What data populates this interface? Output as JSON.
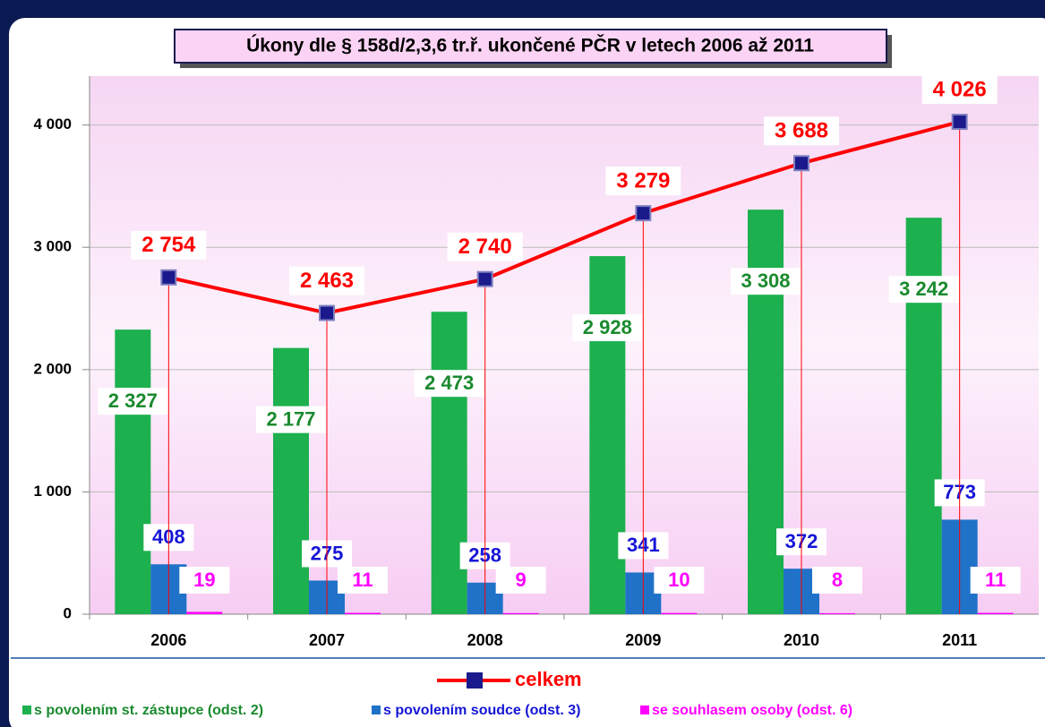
{
  "chart_data": {
    "type": "bar",
    "title": "Úkony dle § 158d/2,3,6 tr.ř. ukončené PČR v letech 2006 až 2011",
    "categories": [
      "2006",
      "2007",
      "2008",
      "2009",
      "2010",
      "2011"
    ],
    "ylim": [
      0,
      4400
    ],
    "yticks": [
      0,
      {
        "value": 1000,
        "label": "1 000"
      },
      {
        "value": 2000,
        "label": "2 000"
      },
      {
        "value": 3000,
        "label": "3 000"
      },
      {
        "value": 4000,
        "label": "4 000"
      }
    ],
    "grid": true,
    "series": [
      {
        "name": "s povolením st. zástupce (odst. 2)",
        "color": "#1db04e",
        "values": [
          2327,
          2177,
          2473,
          2928,
          3308,
          3242
        ],
        "value_labels": [
          "2 327",
          "2 177",
          "2 473",
          "2 928",
          "3 308",
          "3 242"
        ]
      },
      {
        "name": "s povolením soudce (odst. 3)",
        "color": "#1f72c8",
        "values": [
          408,
          275,
          258,
          341,
          372,
          773
        ]
      },
      {
        "name": "se souhlasem osoby (odst. 6)",
        "color": "#ff00ff",
        "values": [
          19,
          11,
          9,
          10,
          8,
          11
        ]
      },
      {
        "name": "celkem",
        "type": "line",
        "color": "#ff0000",
        "marker_color": "#1a1a8c",
        "values": [
          2754,
          2463,
          2740,
          3279,
          3688,
          4026
        ],
        "value_labels": [
          "2 754",
          "2 463",
          "2 740",
          "3 279",
          "3 688",
          "4 026"
        ]
      }
    ]
  }
}
